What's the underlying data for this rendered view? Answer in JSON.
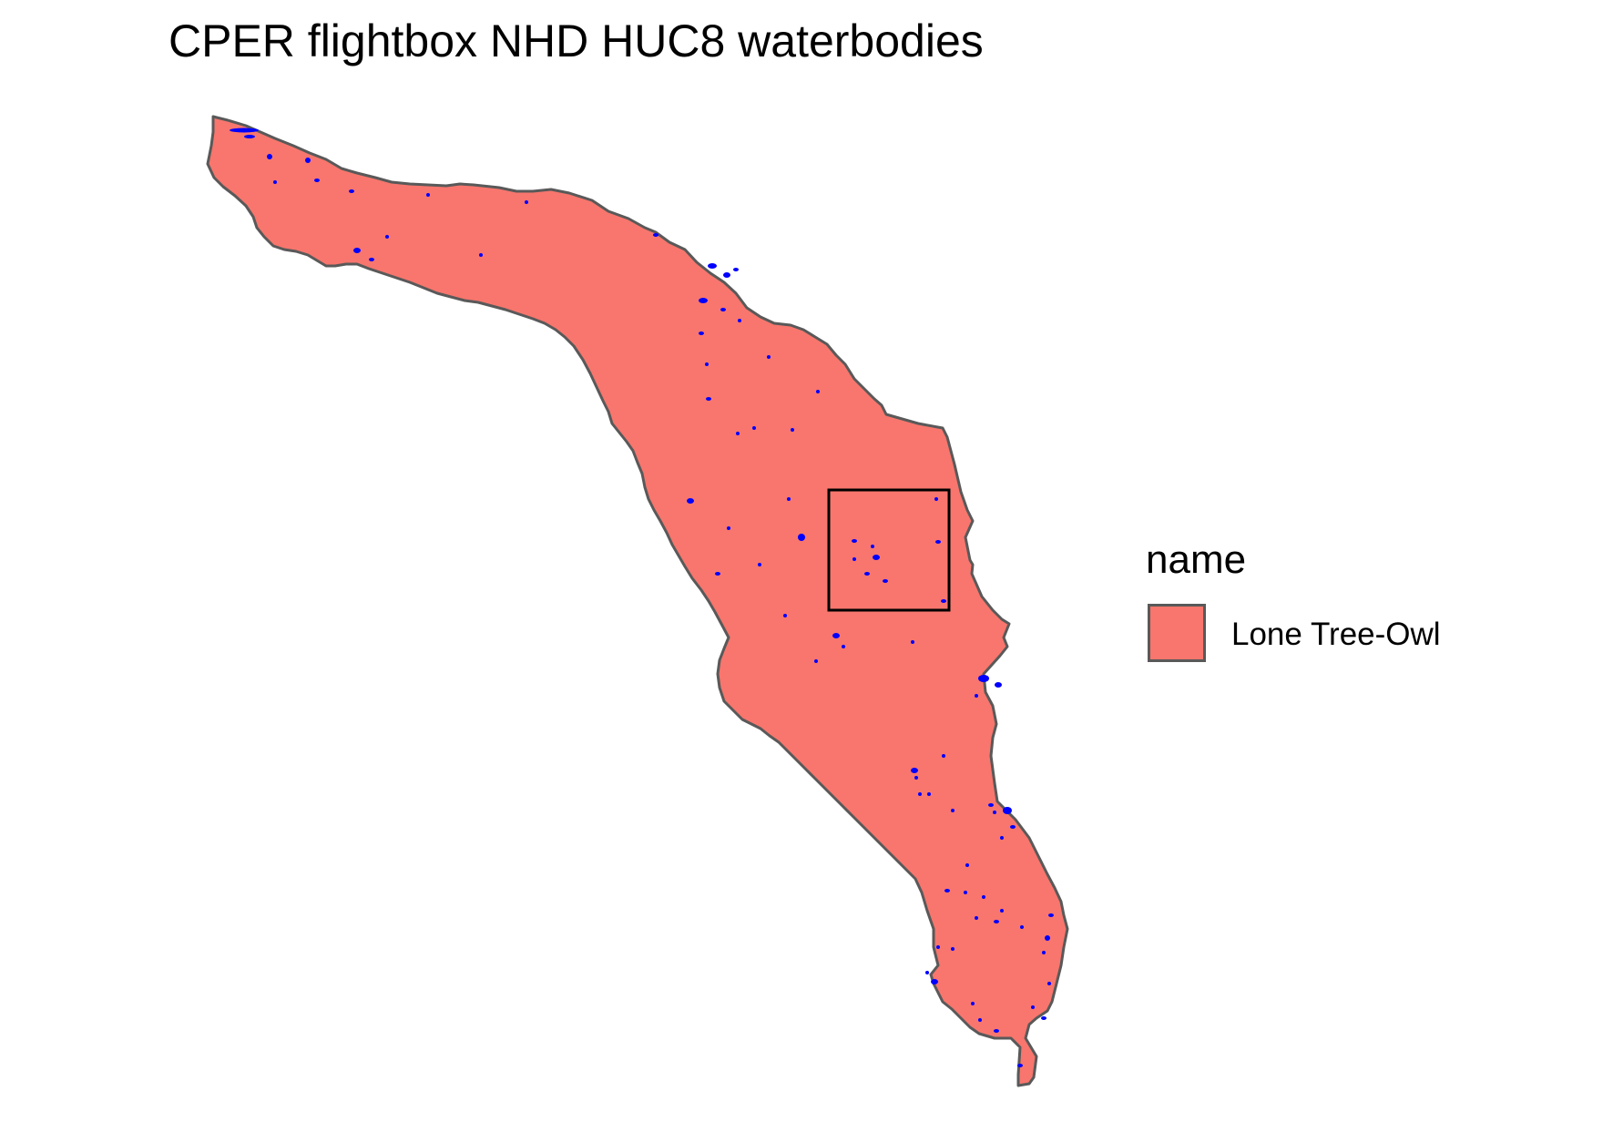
{
  "map": {
    "title": "CPER flightbox NHD HUC8 waterbodies",
    "legend": {
      "title": "name",
      "items": [
        {
          "label": "Lone Tree-Owl",
          "fill": "#F8766D"
        }
      ]
    },
    "colors": {
      "watershed_fill": "#F8766D",
      "watershed_stroke": "#595959",
      "waterbody_fill": "#0000FF",
      "flightbox_stroke": "#000000"
    }
  }
}
